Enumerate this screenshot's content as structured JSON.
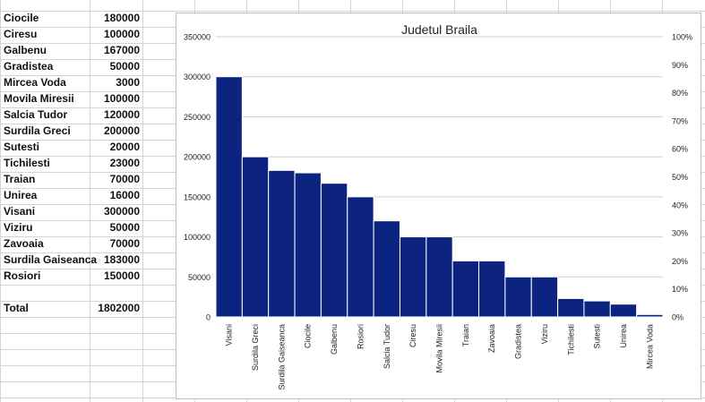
{
  "sheet": {
    "rows": [
      {
        "name": "Ciocile",
        "value": "180000"
      },
      {
        "name": "Ciresu",
        "value": "100000"
      },
      {
        "name": "Galbenu",
        "value": "167000"
      },
      {
        "name": "Gradistea",
        "value": "50000"
      },
      {
        "name": "Mircea Voda",
        "value": "3000"
      },
      {
        "name": "Movila Miresii",
        "value": "100000"
      },
      {
        "name": "Salcia Tudor",
        "value": "120000"
      },
      {
        "name": "Surdila Greci",
        "value": "200000"
      },
      {
        "name": "Sutesti",
        "value": "20000"
      },
      {
        "name": "Tichilesti",
        "value": "23000"
      },
      {
        "name": "Traian",
        "value": "70000"
      },
      {
        "name": "Unirea",
        "value": "16000"
      },
      {
        "name": "Visani",
        "value": "300000"
      },
      {
        "name": "Viziru",
        "value": "50000"
      },
      {
        "name": "Zavoaia",
        "value": "70000"
      },
      {
        "name": "Surdila Gaiseanca",
        "value": "183000"
      },
      {
        "name": "Rosiori",
        "value": "150000"
      }
    ],
    "total": {
      "name": "Total",
      "value": "1802000"
    }
  },
  "chart_data": {
    "type": "bar",
    "title": "Judetul Braila",
    "categories": [
      "Visani",
      "Surdila Greci",
      "Surdila Gaiseanca",
      "Ciocile",
      "Galbenu",
      "Rosiori",
      "Salcia Tudor",
      "Ciresu",
      "Movila Miresii",
      "Traian",
      "Zavoaia",
      "Gradistea",
      "Viziru",
      "Tichilesti",
      "Sutesti",
      "Unirea",
      "Mircea Voda"
    ],
    "values": [
      300000,
      200000,
      183000,
      180000,
      167000,
      150000,
      120000,
      100000,
      100000,
      70000,
      70000,
      50000,
      50000,
      23000,
      20000,
      16000,
      3000
    ],
    "ylim": [
      0,
      350000
    ],
    "yticks": [
      "0",
      "50000",
      "100000",
      "150000",
      "200000",
      "250000",
      "300000",
      "350000"
    ],
    "y2lim": [
      0,
      100
    ],
    "y2ticks": [
      "0%",
      "10%",
      "20%",
      "30%",
      "40%",
      "50%",
      "60%",
      "70%",
      "80%",
      "90%",
      "100%"
    ],
    "bar_color": "#0c2480",
    "grid": true,
    "legend": "none"
  }
}
